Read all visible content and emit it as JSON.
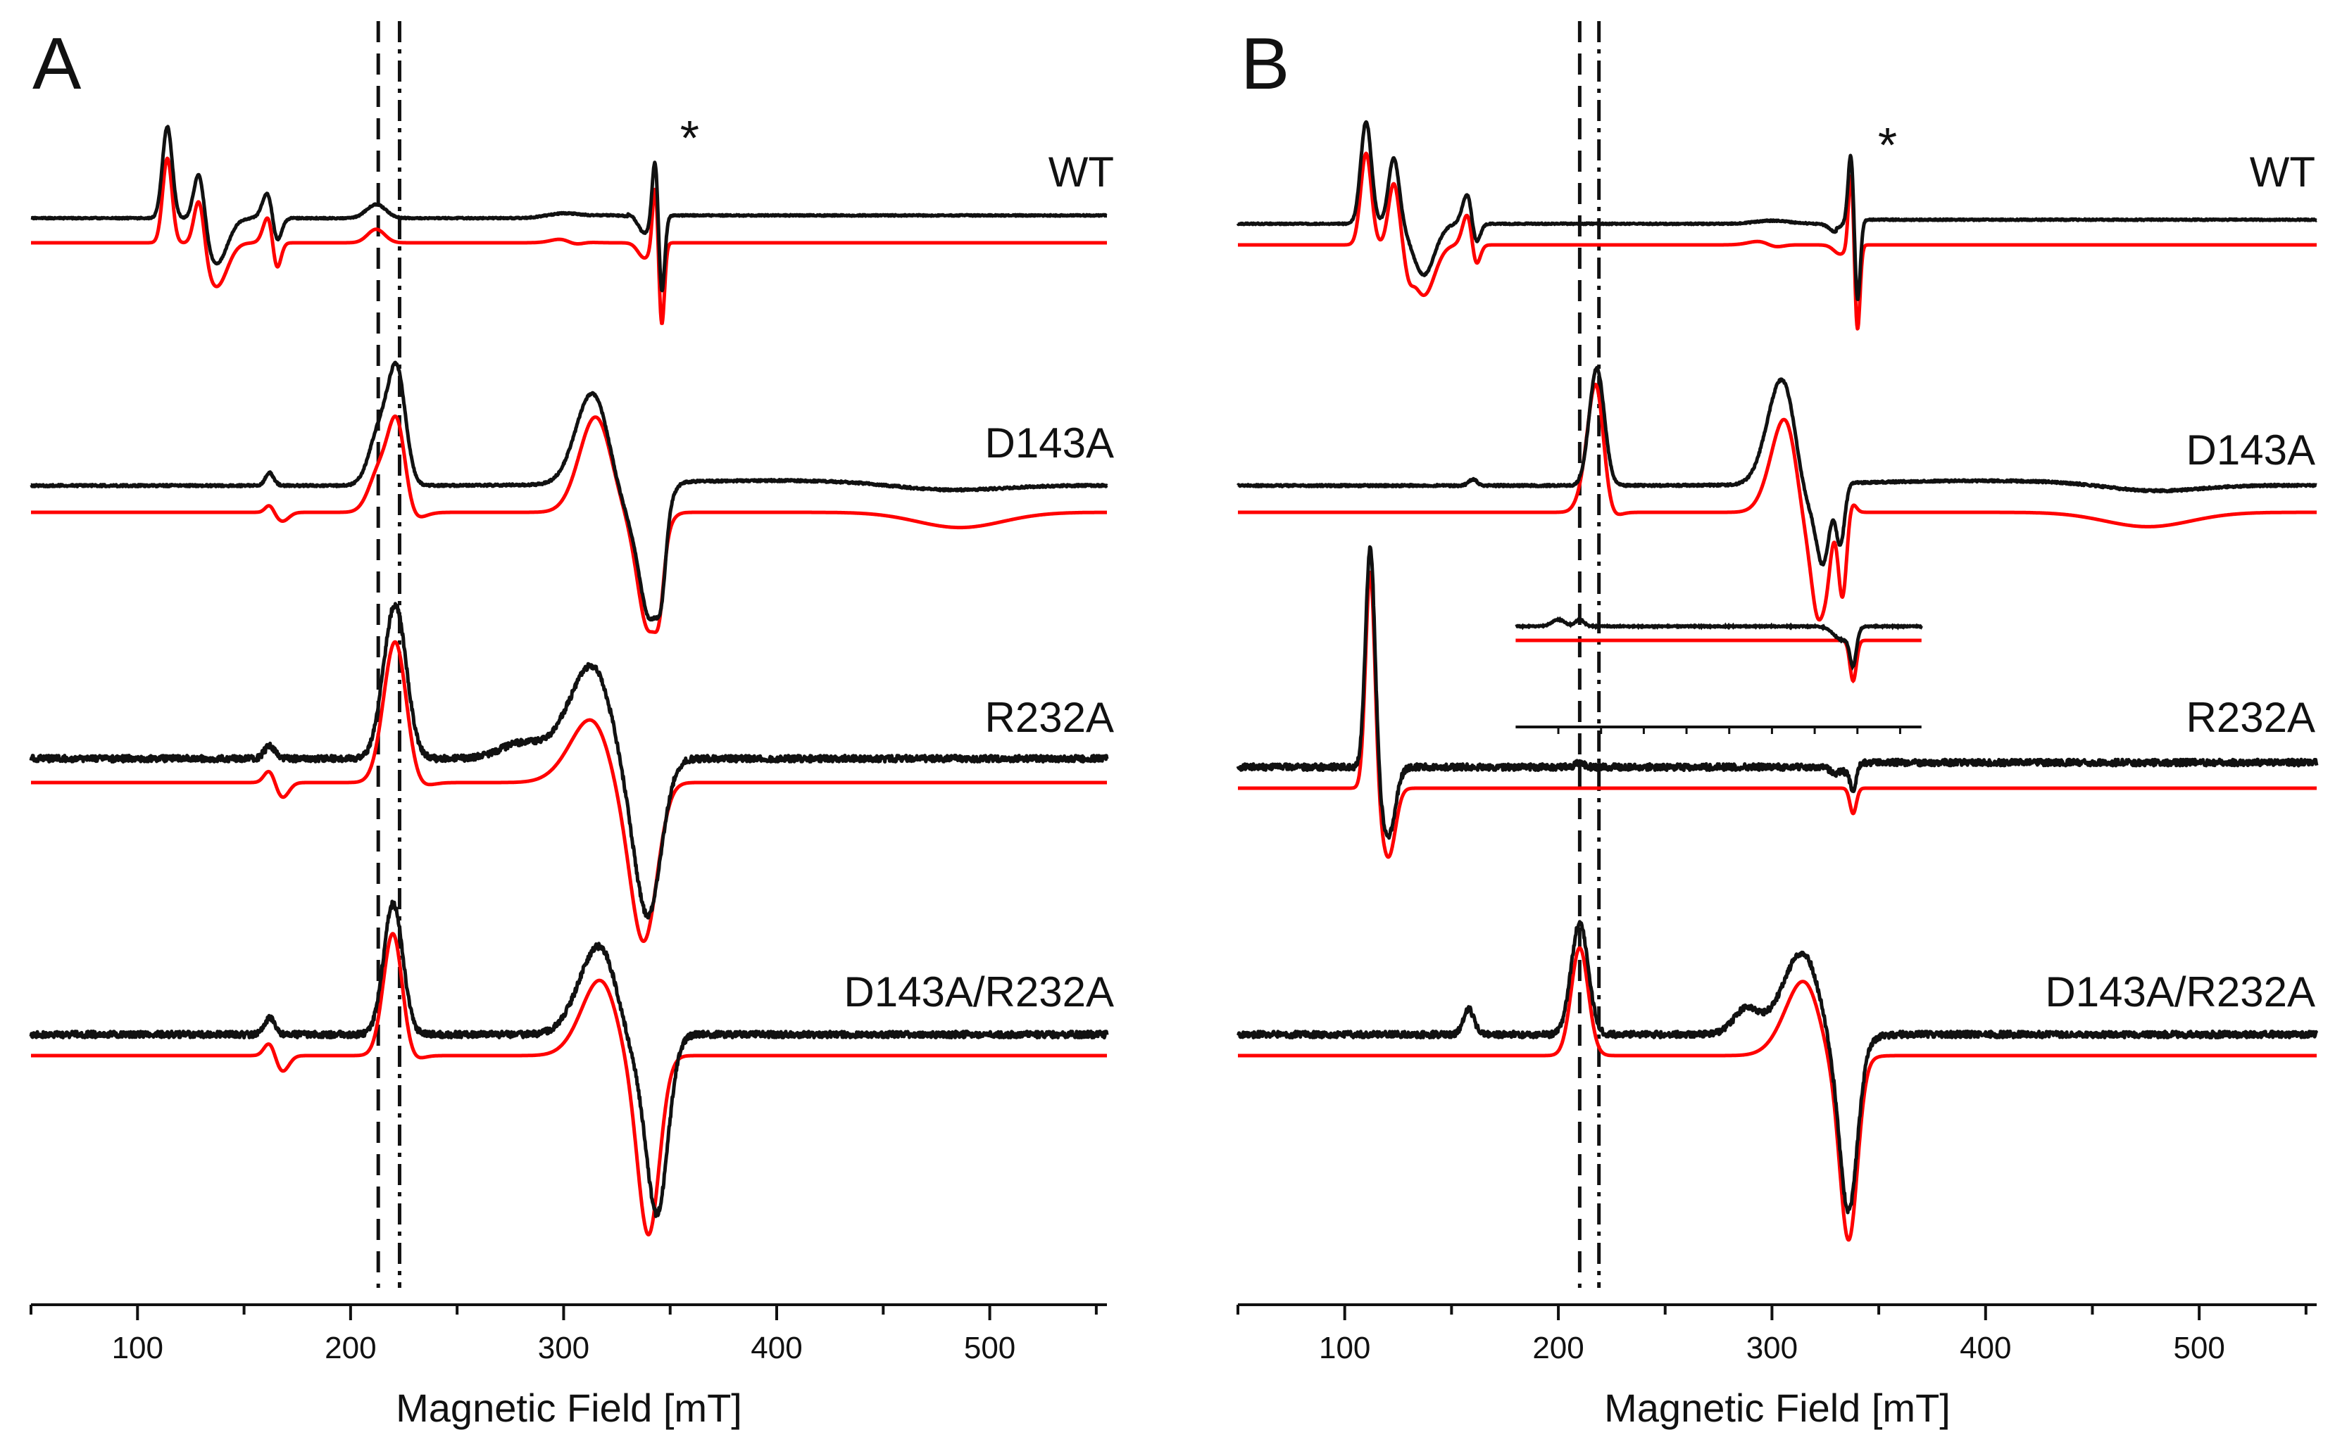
{
  "figure": {
    "x_axis_title": "Magnetic Field [mT]",
    "tick_labels": [
      "100",
      "200",
      "300",
      "400",
      "500"
    ],
    "colors": {
      "experimental": "#111111",
      "simulation": "#ff0000"
    }
  },
  "chart_data": [
    {
      "type": "line",
      "panel": "A",
      "xlabel": "Magnetic Field [mT]",
      "xlim": [
        50,
        555
      ],
      "xticks": [
        100,
        200,
        300,
        400,
        500
      ],
      "reference_lines_mT": {
        "dashed": 213,
        "dashdot": 223
      },
      "star_annotation": {
        "text": "*",
        "x_mT": 350
      },
      "series": [
        {
          "name": "WT",
          "sim_peaks": [
            [
              114,
              1.0,
              2.2
            ],
            [
              129,
              0.62,
              2.4
            ],
            [
              137,
              -0.52,
              5
            ],
            [
              162,
              0.38,
              2.6
            ],
            [
              165,
              -0.45,
              2
            ],
            [
              212,
              0.16,
              4
            ],
            [
              302,
              0.07,
              6
            ],
            [
              305,
              -0.07,
              4
            ],
            [
              338,
              -0.18,
              3
            ],
            [
              343,
              0.74,
              1.3
            ],
            [
              346,
              -1.0,
              1.3
            ]
          ],
          "exp_peaks": [
            [
              114,
              1.0,
              2.3
            ],
            [
              129,
              0.6,
              2.5
            ],
            [
              137,
              -0.5,
              5
            ],
            [
              162,
              0.36,
              2.8
            ],
            [
              165,
              -0.4,
              2.2
            ],
            [
              212,
              0.15,
              4.5
            ],
            [
              300,
              0.05,
              8
            ],
            [
              322,
              0.03,
              10
            ],
            [
              338,
              -0.2,
              3
            ],
            [
              343,
              0.7,
              1.4
            ],
            [
              346,
              -0.88,
              1.4
            ]
          ],
          "exp_tail_offset": 0.03
        },
        {
          "name": "D143A",
          "sim_peaks": [
            [
              162,
              0.06,
              2
            ],
            [
              168,
              -0.07,
              3
            ],
            [
              214,
              0.35,
              5
            ],
            [
              222,
              0.72,
              4
            ],
            [
              226,
              -0.1,
              6
            ],
            [
              316,
              0.85,
              8
            ],
            [
              325,
              -0.2,
              8
            ],
            [
              340,
              -0.9,
              5
            ],
            [
              345,
              -0.3,
              2
            ],
            [
              486,
              -0.12,
              20
            ]
          ],
          "exp_peaks": [
            [
              162,
              0.1,
              2
            ],
            [
              214,
              0.45,
              5
            ],
            [
              222,
              0.82,
              4
            ],
            [
              314,
              0.75,
              8
            ],
            [
              330,
              -0.3,
              8
            ],
            [
              341,
              -0.95,
              5
            ],
            [
              346,
              -0.35,
              2
            ],
            [
              400,
              0.04,
              60
            ],
            [
              480,
              -0.05,
              25
            ]
          ],
          "exp_tail_offset": 0.0
        },
        {
          "name": "R232A",
          "sim_peaks": [
            [
              162,
              0.1,
              2.5
            ],
            [
              168,
              -0.12,
              3
            ],
            [
              218,
              0.35,
              5
            ],
            [
              222,
              0.85,
              5
            ],
            [
              230,
              -0.05,
              6
            ],
            [
              318,
              0.7,
              12
            ],
            [
              328,
              -0.6,
              9
            ],
            [
              338,
              -1.1,
              6
            ]
          ],
          "exp_peaks": [
            [
              162,
              0.1,
              2.5
            ],
            [
              218,
              0.4,
              5
            ],
            [
              222,
              0.9,
              5
            ],
            [
              280,
              0.12,
              10
            ],
            [
              316,
              0.85,
              12
            ],
            [
              330,
              -0.55,
              9
            ],
            [
              340,
              -1.05,
              6
            ]
          ],
          "exp_tail_offset": 0.0
        },
        {
          "name": "D143A/R232A",
          "sim_peaks": [
            [
              162,
              0.1,
              2.5
            ],
            [
              168,
              -0.12,
              3
            ],
            [
              220,
              0.95,
              4.5
            ],
            [
              226,
              -0.08,
              5
            ],
            [
              320,
              0.7,
              10
            ],
            [
              330,
              -0.4,
              8
            ],
            [
              340,
              -1.25,
              5
            ]
          ],
          "exp_peaks": [
            [
              162,
              0.12,
              2.5
            ],
            [
              220,
              0.98,
              4.5
            ],
            [
              318,
              0.72,
              10
            ],
            [
              332,
              -0.35,
              8
            ],
            [
              344,
              -1.25,
              5
            ]
          ],
          "exp_tail_offset": 0.0
        }
      ]
    },
    {
      "type": "line",
      "panel": "B",
      "xlabel": "Magnetic Field [mT]",
      "xlim": [
        50,
        555
      ],
      "xticks": [
        100,
        200,
        300,
        400,
        500
      ],
      "reference_lines_mT": {
        "dashed": 210,
        "dashdot": 219
      },
      "star_annotation": {
        "text": "*",
        "x_mT": 345
      },
      "inset": {
        "xlim": [
          180,
          370
        ],
        "note": "expanded R232A region"
      },
      "series": [
        {
          "name": "WT",
          "sim_peaks": [
            [
              110,
              1.0,
              2.5
            ],
            [
              123,
              0.68,
              2.5
            ],
            [
              130,
              -0.2,
              2
            ],
            [
              137,
              -0.55,
              5
            ],
            [
              158,
              0.4,
              2.5
            ],
            [
              161,
              -0.35,
              2
            ],
            [
              296,
              0.05,
              6
            ],
            [
              301,
              -0.05,
              4
            ],
            [
              332,
              -0.1,
              3
            ],
            [
              337,
              0.82,
              1.2
            ],
            [
              340,
              -0.95,
              1.2
            ]
          ],
          "exp_peaks": [
            [
              110,
              1.0,
              2.5
            ],
            [
              123,
              0.65,
              2.5
            ],
            [
              137,
              -0.5,
              5
            ],
            [
              158,
              0.35,
              2.5
            ],
            [
              161,
              -0.3,
              2
            ],
            [
              300,
              0.03,
              8
            ],
            [
              330,
              -0.08,
              3
            ],
            [
              337,
              0.68,
              1.3
            ],
            [
              340,
              -0.82,
              1.3
            ]
          ],
          "exp_tail_offset": 0.04
        },
        {
          "name": "D143A",
          "sim_peaks": [
            [
              214,
              0.28,
              4
            ],
            [
              218,
              0.9,
              3.5
            ],
            [
              224,
              -0.05,
              4
            ],
            [
              307,
              0.85,
              7
            ],
            [
              316,
              -0.5,
              5
            ],
            [
              322,
              -0.7,
              3
            ],
            [
              326,
              -0.3,
              2
            ],
            [
              333,
              -0.72,
              2
            ],
            [
              337,
              0.1,
              2
            ],
            [
              476,
              -0.12,
              20
            ]
          ],
          "exp_peaks": [
            [
              160,
              0.05,
              2
            ],
            [
              218,
              0.98,
              3.5
            ],
            [
              305,
              0.9,
              7
            ],
            [
              316,
              -0.35,
              5
            ],
            [
              324,
              -0.6,
              3
            ],
            [
              332,
              -0.5,
              2
            ],
            [
              400,
              0.04,
              60
            ],
            [
              478,
              -0.06,
              22
            ]
          ],
          "exp_tail_offset": 0.0
        },
        {
          "name": "R232A",
          "sim_peaks": [
            [
              112,
              1.05,
              2.2
            ],
            [
              117,
              -0.1,
              3
            ],
            [
              121,
              -0.28,
              3
            ],
            [
              338,
              -0.12,
              1.5
            ]
          ],
          "exp_peaks": [
            [
              112,
              1.0,
              2.2
            ],
            [
              117,
              -0.1,
              3
            ],
            [
              121,
              -0.26,
              3
            ],
            [
              210,
              0.02,
              2
            ],
            [
              333,
              -0.04,
              4
            ],
            [
              338,
              -0.1,
              1.5
            ]
          ],
          "exp_tail_offset": 0.02
        },
        {
          "name": "D143A/R232A",
          "sim_peaks": [
            [
              210,
              0.85,
              4
            ],
            [
              318,
              0.75,
              10
            ],
            [
              328,
              -0.5,
              8
            ],
            [
              336,
              -1.3,
              4
            ]
          ],
          "exp_peaks": [
            [
              158,
              0.2,
              2.5
            ],
            [
              210,
              0.88,
              4
            ],
            [
              288,
              0.2,
              6
            ],
            [
              316,
              0.72,
              10
            ],
            [
              330,
              -0.45,
              8
            ],
            [
              336,
              -1.15,
              4
            ]
          ],
          "exp_tail_offset": 0.0
        }
      ]
    }
  ]
}
